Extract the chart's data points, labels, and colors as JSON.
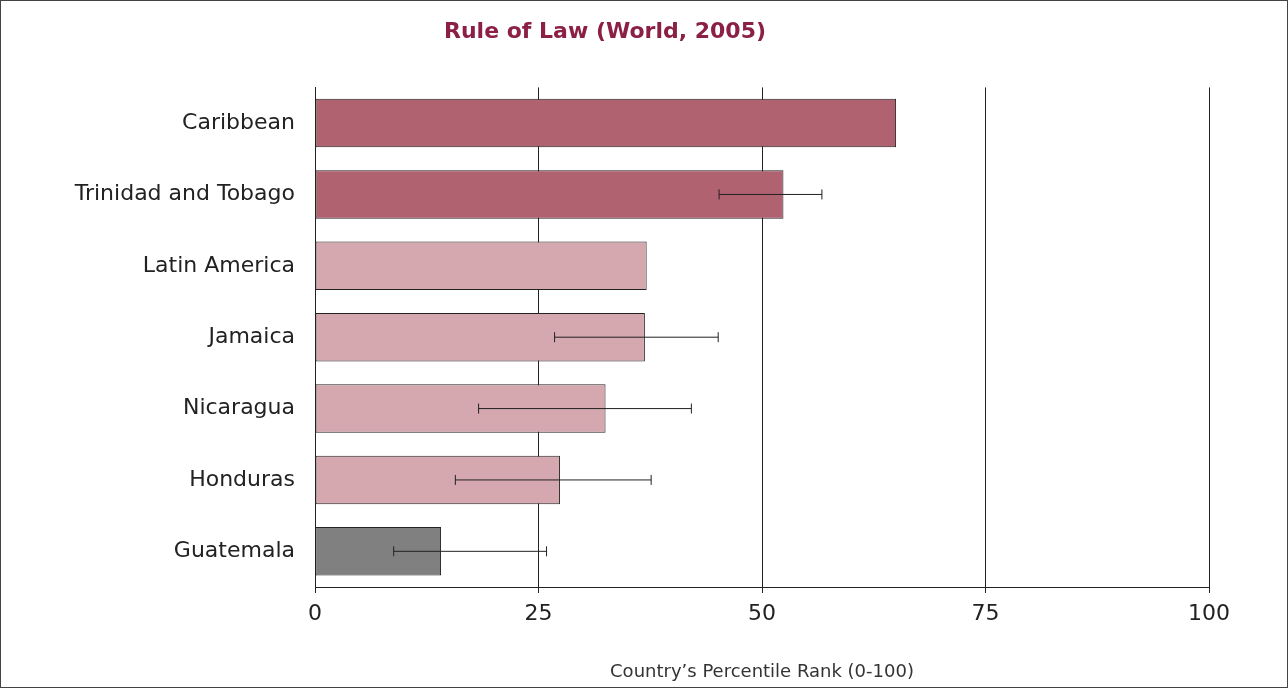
{
  "chart_data": {
    "type": "bar",
    "orientation": "horizontal",
    "title": "Rule of Law (World, 2005)",
    "xlabel": "Country’s Percentile Rank (0-100)",
    "categories": [
      "Caribbean",
      "Trinidad and Tobago",
      "Latin America",
      "Jamaica",
      "Nicaragua",
      "Honduras",
      "Guatemala"
    ],
    "values": [
      65.0,
      52.4,
      37.1,
      36.9,
      32.5,
      27.4,
      14.1
    ],
    "colors": [
      "#b06270",
      "#b06270",
      "#d5a7ae",
      "#d5a7ae",
      "#d5a7ae",
      "#d5a7ae",
      "#808080"
    ],
    "errors": [
      null,
      [
        45.2,
        56.7
      ],
      null,
      [
        26.8,
        45.1
      ],
      [
        18.3,
        42.1
      ],
      [
        15.7,
        37.6
      ],
      [
        8.8,
        25.9
      ]
    ],
    "xlim": [
      0,
      100
    ],
    "xticks": [
      0,
      25,
      50,
      75,
      100
    ],
    "grid": "x"
  }
}
